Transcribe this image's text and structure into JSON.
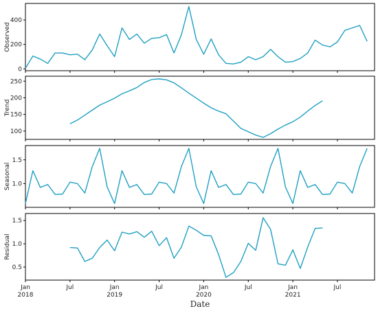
{
  "chart_data": {
    "type": "line",
    "xlabel": "Date",
    "x_range": [
      "2018-01",
      "2021-12"
    ],
    "x_ticks": [
      {
        "date": "2018-01",
        "label": "Jan",
        "sublabel": "2018"
      },
      {
        "date": "2018-07",
        "label": "Jul",
        "sublabel": ""
      },
      {
        "date": "2019-01",
        "label": "Jan",
        "sublabel": "2019"
      },
      {
        "date": "2019-07",
        "label": "Jul",
        "sublabel": ""
      },
      {
        "date": "2020-01",
        "label": "Jan",
        "sublabel": "2020"
      },
      {
        "date": "2020-07",
        "label": "Jul",
        "sublabel": ""
      },
      {
        "date": "2021-01",
        "label": "Jan",
        "sublabel": "2021"
      },
      {
        "date": "2021-07",
        "label": "Jul",
        "sublabel": ""
      }
    ],
    "line_color": "#1f9fc2",
    "panels": [
      {
        "ylabel": "Observed",
        "ylim": [
          -15,
          535
        ],
        "yticks": [
          0,
          200,
          400
        ],
        "start": "2018-01",
        "values": [
          5,
          105,
          80,
          45,
          130,
          130,
          115,
          120,
          75,
          155,
          285,
          190,
          100,
          335,
          240,
          285,
          210,
          250,
          255,
          280,
          130,
          280,
          510,
          240,
          120,
          245,
          115,
          45,
          40,
          55,
          100,
          75,
          100,
          160,
          100,
          55,
          60,
          85,
          130,
          235,
          195,
          180,
          220,
          315,
          335,
          355,
          225
        ]
      },
      {
        "ylabel": "Trend",
        "ylim": [
          75,
          265
        ],
        "yticks": [
          100,
          150,
          200,
          250
        ],
        "start": "2018-07",
        "values": [
          122,
          133,
          148,
          163,
          178,
          188,
          199,
          212,
          221,
          231,
          246,
          255,
          257,
          254,
          245,
          230,
          214,
          199,
          184,
          170,
          160,
          152,
          130,
          108,
          98,
          88,
          81,
          92,
          106,
          118,
          128,
          142,
          160,
          177,
          191
        ]
      },
      {
        "ylabel": "Seasonal",
        "ylim": [
          0.5,
          1.8
        ],
        "yticks": [
          1.0,
          1.5
        ],
        "start": "2018-01",
        "values": [
          0.58,
          1.27,
          0.92,
          0.98,
          0.77,
          0.78,
          1.03,
          1.0,
          0.8,
          1.36,
          1.74,
          0.93,
          0.58,
          1.27,
          0.92,
          0.98,
          0.77,
          0.78,
          1.03,
          1.0,
          0.8,
          1.36,
          1.74,
          0.93,
          0.58,
          1.27,
          0.92,
          0.98,
          0.77,
          0.78,
          1.03,
          1.0,
          0.8,
          1.36,
          1.74,
          0.93,
          0.58,
          1.27,
          0.92,
          0.98,
          0.77,
          0.78,
          1.03,
          1.0,
          0.8,
          1.36,
          1.74
        ]
      },
      {
        "ylabel": "Residual",
        "ylim": [
          0.22,
          1.65
        ],
        "yticks": [
          0.5,
          1.0,
          1.5
        ],
        "start": "2018-07",
        "values": [
          0.92,
          0.91,
          0.62,
          0.69,
          0.92,
          1.08,
          0.85,
          1.25,
          1.21,
          1.26,
          1.14,
          1.27,
          0.96,
          1.13,
          0.69,
          0.93,
          1.38,
          1.29,
          1.18,
          1.17,
          0.77,
          0.28,
          0.38,
          0.62,
          1.01,
          0.86,
          1.56,
          1.31,
          0.57,
          0.54,
          0.87,
          0.47,
          0.93,
          1.33,
          1.34
        ]
      }
    ]
  }
}
